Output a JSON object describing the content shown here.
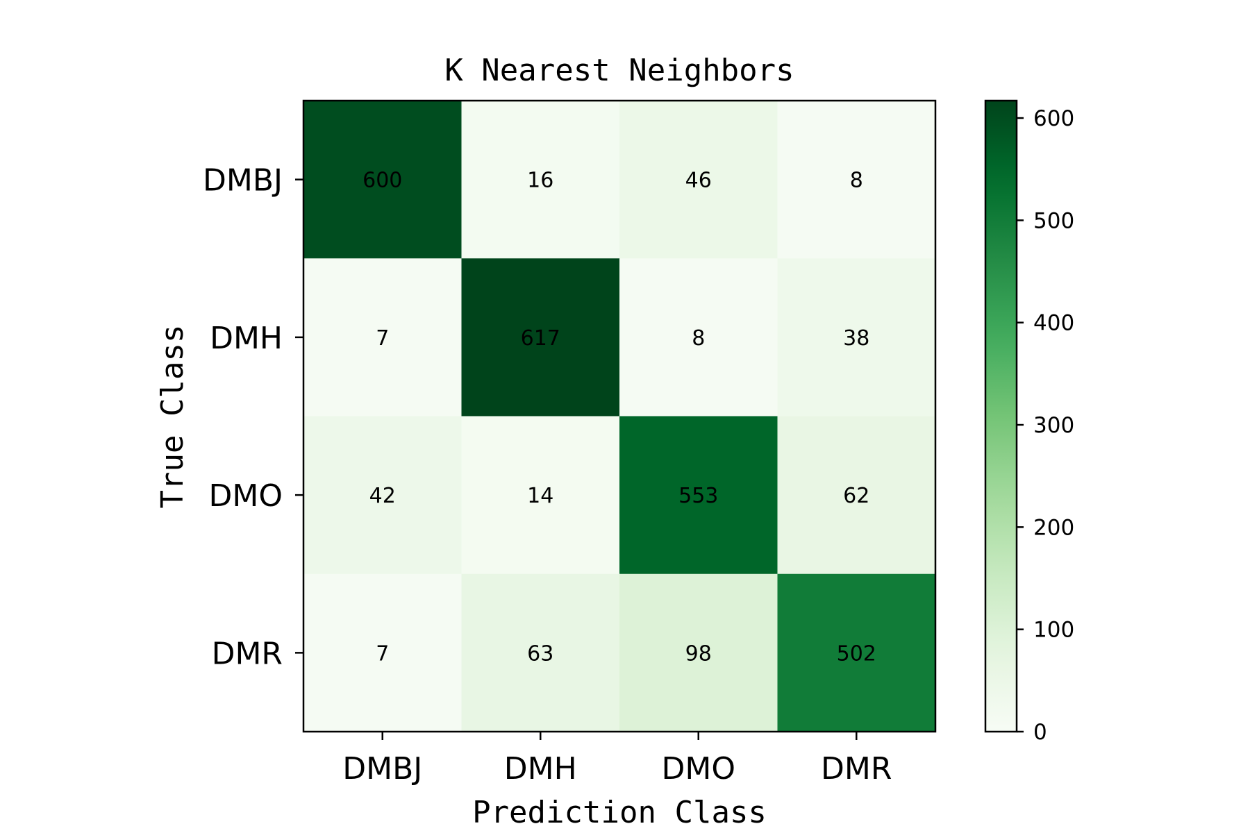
{
  "chart_data": {
    "type": "heatmap",
    "title": "K Nearest Neighbors",
    "xlabel": "Prediction Class",
    "ylabel": "True Class",
    "x_categories": [
      "DMBJ",
      "DMH",
      "DMO",
      "DMR"
    ],
    "y_categories": [
      "DMBJ",
      "DMH",
      "DMO",
      "DMR"
    ],
    "values": [
      [
        600,
        16,
        46,
        8
      ],
      [
        7,
        617,
        8,
        38
      ],
      [
        42,
        14,
        553,
        62
      ],
      [
        7,
        63,
        98,
        502
      ]
    ],
    "colorbar": {
      "colormap": "Greens",
      "range": [
        0,
        617
      ],
      "ticks": [
        0,
        100,
        200,
        300,
        400,
        500,
        600
      ],
      "tick_labels": [
        "0",
        "100",
        "200",
        "300",
        "400",
        "500",
        "600"
      ]
    },
    "grid": false,
    "legend": "none"
  }
}
